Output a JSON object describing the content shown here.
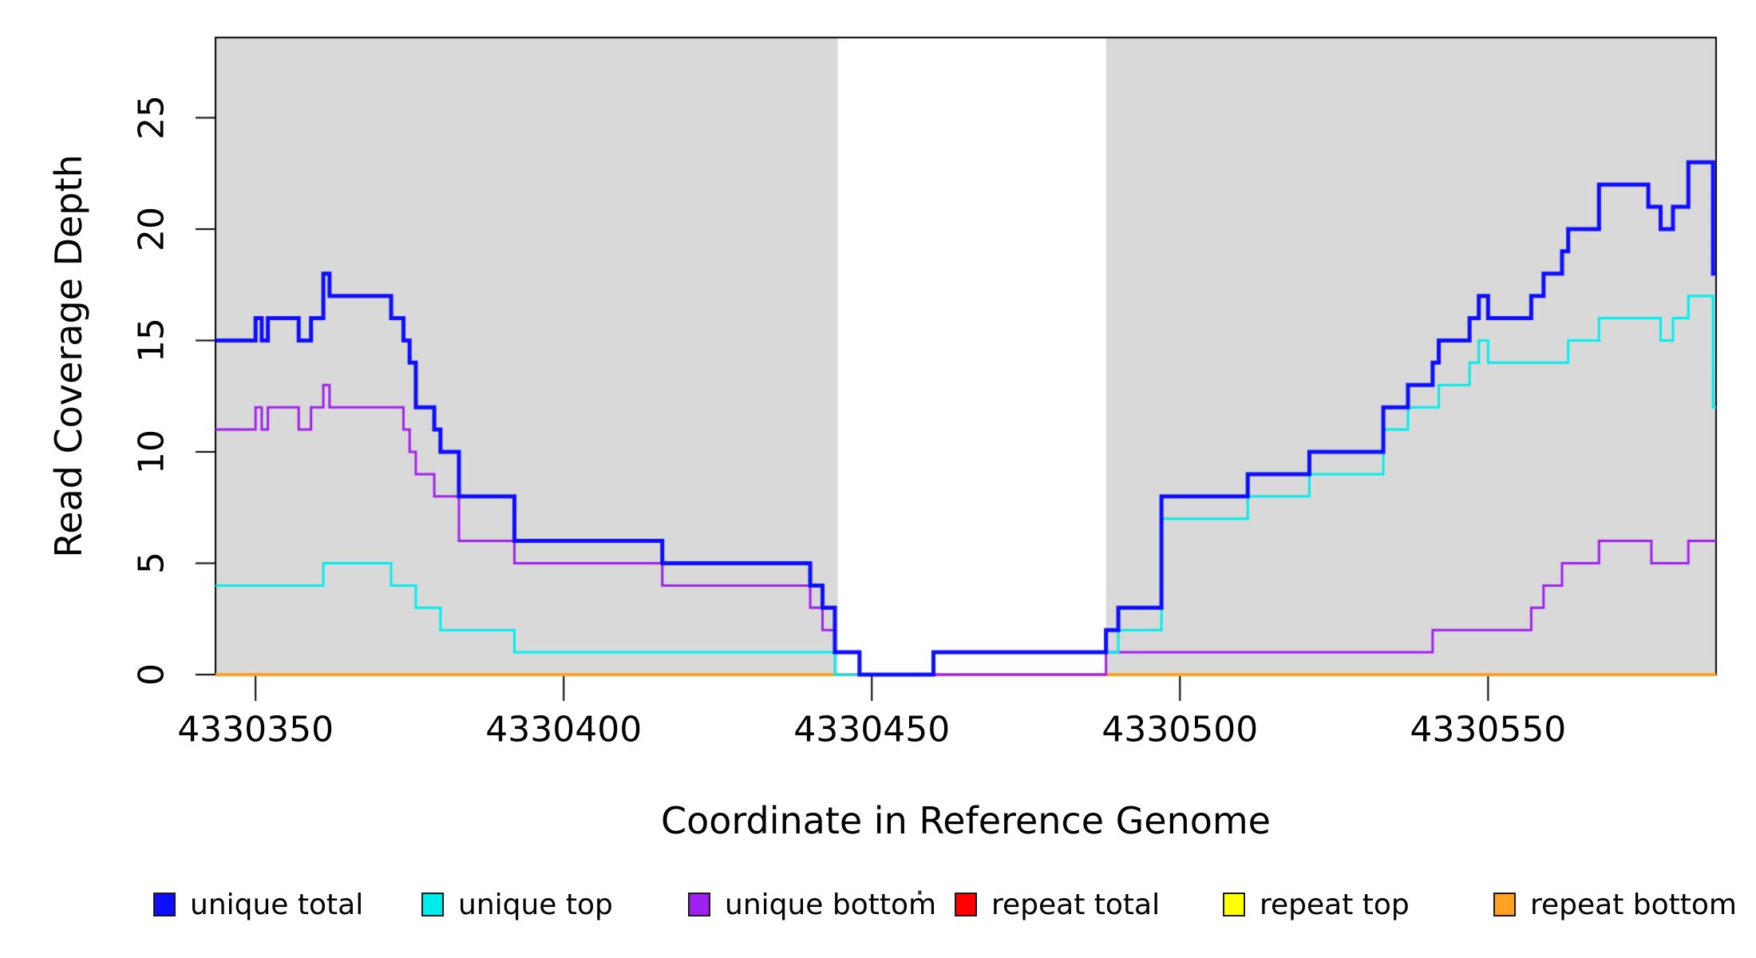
{
  "figure": {
    "background": "#ffffff",
    "band_color": "#d9d9d9",
    "border_color": "#000000"
  },
  "chart_data": {
    "type": "line",
    "subtype": "step-coverage",
    "title": "",
    "xlabel": "Coordinate in Reference Genome",
    "ylabel": "Read Coverage Depth",
    "xlim": [
      4330343.5,
      4330587
    ],
    "ylim": [
      0,
      28.6
    ],
    "x_ticks": [
      4330350,
      4330400,
      4330450,
      4330500,
      4330550
    ],
    "y_ticks": [
      0,
      5,
      10,
      15,
      20,
      25
    ],
    "grid": false,
    "legend_position": "bottom-horizontal",
    "shaded_x_ranges": [
      [
        4330343.5,
        4330444.5
      ],
      [
        4330488,
        4330587
      ]
    ],
    "shade_color": "#d9d9d9",
    "draw_order": [
      "repeat top",
      "repeat total",
      "repeat bottom",
      "unique bottom",
      "unique top",
      "unique total"
    ],
    "series": [
      {
        "name": "unique total",
        "color": "#0d0dff",
        "line_width": 5,
        "steps": [
          [
            4330343.5,
            15
          ],
          [
            4330350,
            16
          ],
          [
            4330351,
            15
          ],
          [
            4330352,
            16
          ],
          [
            4330357,
            15
          ],
          [
            4330359,
            16
          ],
          [
            4330361,
            18
          ],
          [
            4330362,
            17
          ],
          [
            4330372,
            16
          ],
          [
            4330374,
            15
          ],
          [
            4330375,
            14
          ],
          [
            4330376,
            12
          ],
          [
            4330379,
            11
          ],
          [
            4330380,
            10
          ],
          [
            4330383,
            8
          ],
          [
            4330392,
            6
          ],
          [
            4330416,
            5
          ],
          [
            4330440,
            4
          ],
          [
            4330442,
            3
          ],
          [
            4330444,
            1
          ],
          [
            4330448,
            0
          ],
          [
            4330460,
            1
          ],
          [
            4330488,
            2
          ],
          [
            4330490,
            3
          ],
          [
            4330497,
            8
          ],
          [
            4330511,
            9
          ],
          [
            4330521,
            10
          ],
          [
            4330533,
            12
          ],
          [
            4330537,
            13
          ],
          [
            4330541,
            14
          ],
          [
            4330542,
            15
          ],
          [
            4330547,
            16
          ],
          [
            4330548.5,
            17
          ],
          [
            4330550,
            16
          ],
          [
            4330557,
            17
          ],
          [
            4330559,
            18
          ],
          [
            4330562,
            19
          ],
          [
            4330563,
            20
          ],
          [
            4330568,
            22
          ],
          [
            4330576,
            21
          ],
          [
            4330578,
            20
          ],
          [
            4330580,
            21
          ],
          [
            4330582.5,
            23
          ],
          [
            4330586.5,
            18
          ]
        ]
      },
      {
        "name": "unique top",
        "color": "#00eded",
        "line_width": 3,
        "steps": [
          [
            4330343.5,
            4
          ],
          [
            4330361,
            5
          ],
          [
            4330372,
            4
          ],
          [
            4330376,
            3
          ],
          [
            4330380,
            2
          ],
          [
            4330392,
            1
          ],
          [
            4330444,
            0
          ],
          [
            4330460,
            1
          ],
          [
            4330490,
            2
          ],
          [
            4330497,
            7
          ],
          [
            4330511,
            8
          ],
          [
            4330521,
            9
          ],
          [
            4330533,
            11
          ],
          [
            4330537,
            12
          ],
          [
            4330542,
            13
          ],
          [
            4330547,
            14
          ],
          [
            4330548.5,
            15
          ],
          [
            4330550,
            14
          ],
          [
            4330563,
            15
          ],
          [
            4330568,
            16
          ],
          [
            4330578,
            15
          ],
          [
            4330580,
            16
          ],
          [
            4330582.5,
            17
          ],
          [
            4330586.5,
            12
          ]
        ]
      },
      {
        "name": "unique bottom",
        "color": "#a020f0",
        "line_width": 3,
        "steps": [
          [
            4330343.5,
            11
          ],
          [
            4330350,
            12
          ],
          [
            4330351,
            11
          ],
          [
            4330352,
            12
          ],
          [
            4330357,
            11
          ],
          [
            4330359,
            12
          ],
          [
            4330361,
            13
          ],
          [
            4330362,
            12
          ],
          [
            4330374,
            11
          ],
          [
            4330375,
            10
          ],
          [
            4330376,
            9
          ],
          [
            4330379,
            8
          ],
          [
            4330383,
            6
          ],
          [
            4330392,
            5
          ],
          [
            4330416,
            4
          ],
          [
            4330440,
            3
          ],
          [
            4330442,
            2
          ],
          [
            4330444,
            1
          ],
          [
            4330448,
            0
          ],
          [
            4330488,
            1
          ],
          [
            4330541,
            2
          ],
          [
            4330557,
            3
          ],
          [
            4330559,
            4
          ],
          [
            4330562,
            5
          ],
          [
            4330568,
            6
          ],
          [
            4330576.5,
            5
          ],
          [
            4330582.5,
            6
          ]
        ]
      },
      {
        "name": "repeat total",
        "color": "#ff0000",
        "line_width": 3,
        "steps": [
          [
            4330343.5,
            0
          ]
        ]
      },
      {
        "name": "repeat top",
        "color": "#ffff00",
        "line_width": 3,
        "steps": [
          [
            4330343.5,
            0
          ]
        ]
      },
      {
        "name": "repeat bottom",
        "color": "#ffa020",
        "line_width": 4,
        "x_ranges": [
          [
            4330343.5,
            4330444.5
          ],
          [
            4330488,
            4330587
          ]
        ],
        "steps": [
          [
            4330343.5,
            0
          ]
        ]
      }
    ]
  },
  "legend": {
    "items": [
      {
        "label": "unique total",
        "color": "#0d0dff"
      },
      {
        "label": "unique top",
        "color": "#00eded"
      },
      {
        "label": "unique bottom",
        "color": "#a020f0"
      },
      {
        "label": "repeat total",
        "color": "#ff0000"
      },
      {
        "label": "repeat top",
        "color": "#ffff00"
      },
      {
        "label": "repeat bottom",
        "color": "#ffa020"
      }
    ],
    "artifact_dot": "·"
  }
}
